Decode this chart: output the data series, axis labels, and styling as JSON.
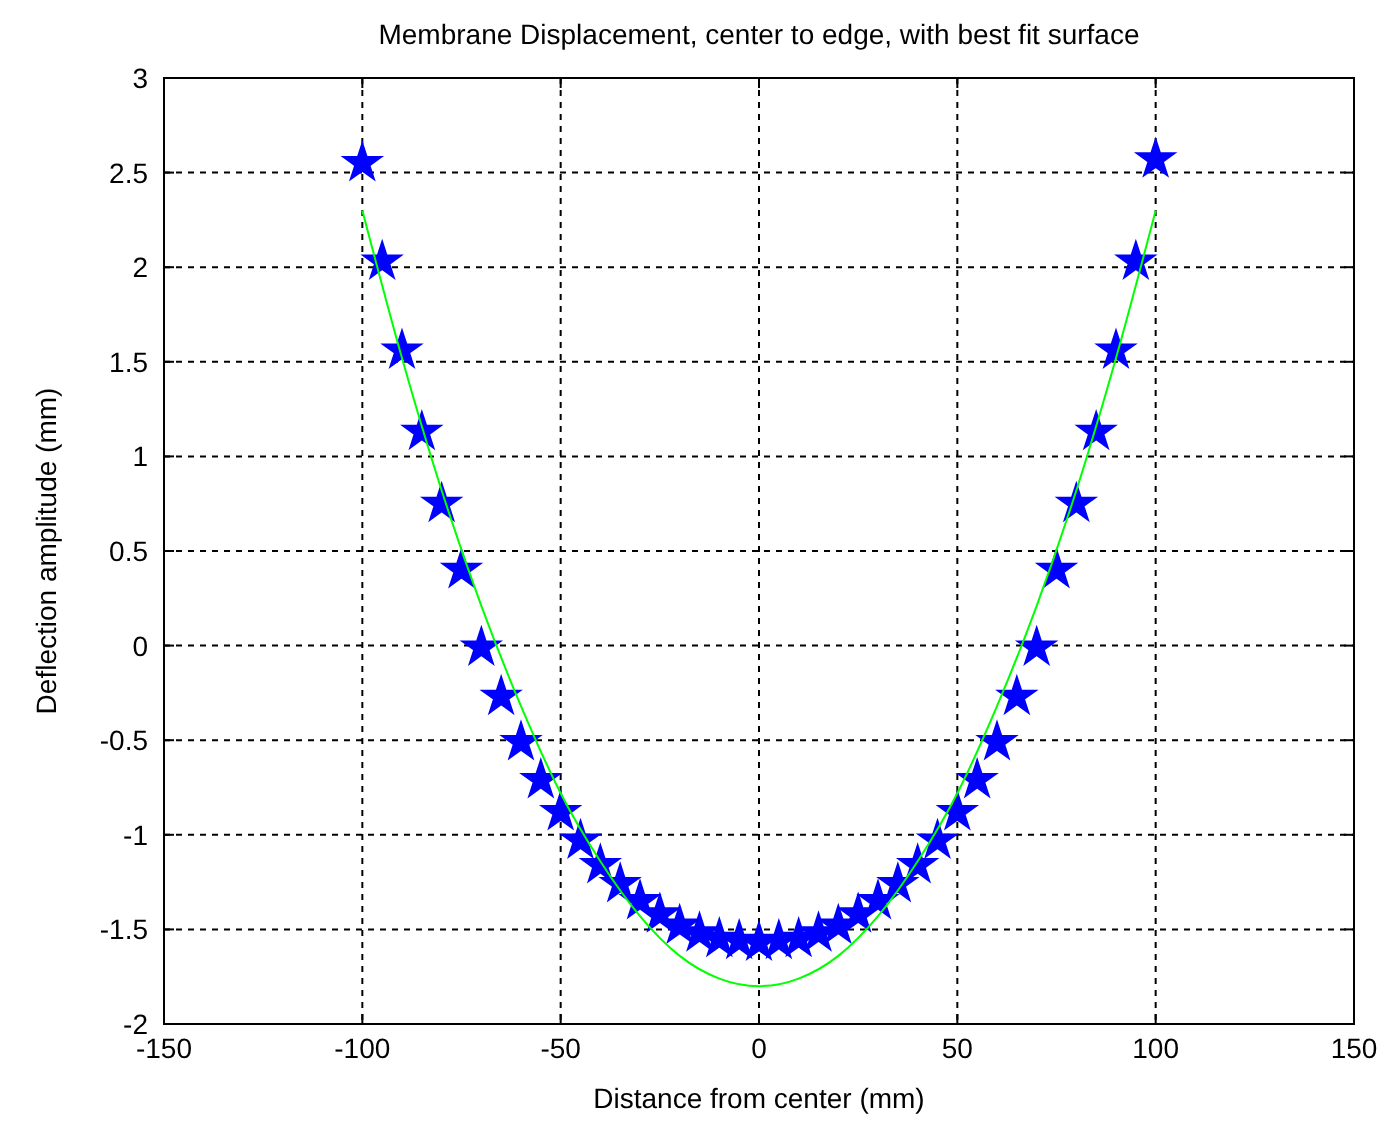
{
  "chart_data": {
    "type": "scatter",
    "title": "Membrane Displacement, center to edge, with best fit surface",
    "xlabel": "Distance from center (mm)",
    "ylabel": "Deflection amplitude (mm)",
    "xlim": [
      -150,
      150
    ],
    "xticks": [
      -150,
      -100,
      -50,
      0,
      50,
      100,
      150
    ],
    "ylim": [
      -2,
      3
    ],
    "yticks": [
      -2,
      -1.5,
      -1,
      -0.5,
      0,
      0.5,
      1,
      1.5,
      2,
      2.5,
      3
    ],
    "grid": true,
    "series": [
      {
        "marker": "star",
        "color": "#0000ff",
        "x": [
          -100,
          -95,
          -90,
          -85,
          -80,
          -75,
          -70,
          -65,
          -60,
          -55,
          -50,
          -45,
          -40,
          -35,
          -30,
          -25,
          -20,
          -15,
          -10,
          -5,
          0,
          5,
          10,
          15,
          20,
          25,
          30,
          35,
          40,
          45,
          50,
          55,
          60,
          65,
          70,
          75,
          80,
          85,
          90,
          95,
          100
        ],
        "values": [
          2.55,
          2.03,
          1.56,
          1.13,
          0.75,
          0.4,
          -0.01,
          -0.27,
          -0.51,
          -0.71,
          -0.88,
          -1.03,
          -1.16,
          -1.26,
          -1.35,
          -1.42,
          -1.48,
          -1.52,
          -1.55,
          -1.56,
          -1.57,
          -1.56,
          -1.55,
          -1.52,
          -1.48,
          -1.42,
          -1.35,
          -1.26,
          -1.16,
          -1.03,
          -0.88,
          -0.71,
          -0.51,
          -0.27,
          -0.01,
          0.4,
          0.75,
          1.13,
          1.56,
          2.03,
          2.57
        ]
      },
      {
        "type": "line",
        "marker": "none",
        "color": "#00ff00",
        "x": [
          -100,
          -90,
          -80,
          -70,
          -60,
          -50,
          -40,
          -30,
          -20,
          -10,
          0,
          10,
          20,
          30,
          40,
          50,
          60,
          70,
          80,
          90,
          100
        ],
        "values": [
          2.3,
          1.52,
          0.82,
          0.21,
          -0.32,
          -0.78,
          -1.14,
          -1.43,
          -1.64,
          -1.76,
          -1.8,
          -1.76,
          -1.64,
          -1.43,
          -1.14,
          -0.78,
          -0.32,
          0.21,
          0.82,
          1.52,
          2.3
        ]
      }
    ]
  }
}
